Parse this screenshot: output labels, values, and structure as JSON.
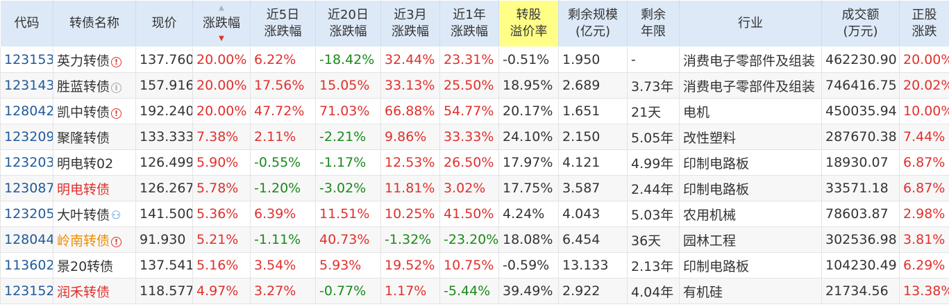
{
  "headers": [
    [
      "代码"
    ],
    [
      "转债名称"
    ],
    [
      "现价"
    ],
    [
      "涨跌幅"
    ],
    [
      "近5日",
      "涨跌幅"
    ],
    [
      "近20日",
      "涨跌幅"
    ],
    [
      "近3月",
      "涨跌幅"
    ],
    [
      "近1年",
      "涨跌幅"
    ],
    [
      "转股",
      "溢价率"
    ],
    [
      "剩余规模",
      "(亿元)"
    ],
    [
      "剩余",
      "年限"
    ],
    [
      "行业"
    ],
    [
      "成交额",
      "(万元)"
    ],
    [
      "正股",
      "涨跌"
    ]
  ],
  "sort_icons": {
    "up": "▲",
    "down": "▼"
  },
  "rows": [
    {
      "code": "123153",
      "name": "英力转债",
      "name_color": "default",
      "icon": "warning-icon",
      "icon_glyph": "!",
      "price": "137.760",
      "chg": "20.00%",
      "chg5": "6.22%",
      "chg20": "-18.42%",
      "chg3m": "32.44%",
      "chg1y": "23.31%",
      "premium": "-0.51%",
      "scale": "1.950",
      "remain": "-",
      "industry": "消费电子零部件及组装",
      "turnover": "462230.90",
      "stock_chg": "20.00%"
    },
    {
      "code": "123143",
      "name": "胜蓝转债",
      "name_color": "default",
      "icon": "info-icon",
      "icon_glyph": "i",
      "price": "157.916",
      "chg": "20.00%",
      "chg5": "17.56%",
      "chg20": "15.05%",
      "chg3m": "33.13%",
      "chg1y": "25.50%",
      "premium": "18.95%",
      "scale": "2.689",
      "remain": "3.73年",
      "industry": "消费电子零部件及组装",
      "turnover": "746416.75",
      "stock_chg": "20.02%"
    },
    {
      "code": "128042",
      "name": "凯中转债",
      "name_color": "default",
      "icon": "warning-icon",
      "icon_glyph": "!",
      "price": "192.240",
      "chg": "20.00%",
      "chg5": "47.72%",
      "chg20": "71.03%",
      "chg3m": "66.88%",
      "chg1y": "54.77%",
      "premium": "20.17%",
      "scale": "1.651",
      "remain": "21天",
      "industry": "电机",
      "turnover": "450035.94",
      "stock_chg": "10.00%"
    },
    {
      "code": "123209",
      "name": "聚隆转债",
      "name_color": "default",
      "icon": "",
      "icon_glyph": "",
      "price": "133.333",
      "chg": "7.38%",
      "chg5": "2.11%",
      "chg20": "-2.21%",
      "chg3m": "9.86%",
      "chg1y": "33.33%",
      "premium": "24.10%",
      "scale": "2.150",
      "remain": "5.05年",
      "industry": "改性塑料",
      "turnover": "287670.38",
      "stock_chg": "7.44%"
    },
    {
      "code": "123203",
      "name": "明电转02",
      "name_color": "default",
      "icon": "",
      "icon_glyph": "",
      "price": "126.499",
      "chg": "5.90%",
      "chg5": "-0.55%",
      "chg20": "-1.17%",
      "chg3m": "12.53%",
      "chg1y": "26.50%",
      "premium": "17.97%",
      "scale": "4.121",
      "remain": "4.99年",
      "industry": "印制电路板",
      "turnover": "18930.07",
      "stock_chg": "6.87%"
    },
    {
      "code": "123087",
      "name": "明电转债",
      "name_color": "red",
      "icon": "",
      "icon_glyph": "",
      "price": "126.267",
      "chg": "5.78%",
      "chg5": "-1.20%",
      "chg20": "-3.02%",
      "chg3m": "11.81%",
      "chg1y": "3.02%",
      "premium": "17.75%",
      "scale": "3.587",
      "remain": "2.44年",
      "industry": "印制电路板",
      "turnover": "33571.18",
      "stock_chg": "6.87%"
    },
    {
      "code": "123205",
      "name": "大叶转债",
      "name_color": "default",
      "icon": "person-icon",
      "icon_glyph": "⚇",
      "price": "141.500",
      "chg": "5.36%",
      "chg5": "6.39%",
      "chg20": "11.51%",
      "chg3m": "10.25%",
      "chg1y": "41.50%",
      "premium": "4.24%",
      "scale": "4.043",
      "remain": "5.03年",
      "industry": "农用机械",
      "turnover": "78603.87",
      "stock_chg": "2.98%"
    },
    {
      "code": "128044",
      "name": "岭南转债",
      "name_color": "orange",
      "icon": "warning-icon",
      "icon_glyph": "!",
      "price": "91.930",
      "chg": "5.21%",
      "chg5": "-1.11%",
      "chg20": "40.73%",
      "chg3m": "-1.32%",
      "chg1y": "-23.20%",
      "premium": "18.08%",
      "scale": "6.454",
      "remain": "36天",
      "industry": "园林工程",
      "turnover": "302536.98",
      "stock_chg": "3.81%"
    },
    {
      "code": "113602",
      "name": "景20转债",
      "name_color": "default",
      "icon": "",
      "icon_glyph": "",
      "price": "137.541",
      "chg": "5.16%",
      "chg5": "3.54%",
      "chg20": "5.93%",
      "chg3m": "19.52%",
      "chg1y": "10.75%",
      "premium": "-0.59%",
      "scale": "13.133",
      "remain": "2.13年",
      "industry": "印制电路板",
      "turnover": "104230.49",
      "stock_chg": "6.29%"
    },
    {
      "code": "123152",
      "name": "润禾转债",
      "name_color": "red",
      "icon": "",
      "icon_glyph": "",
      "price": "118.577",
      "chg": "4.97%",
      "chg5": "3.27%",
      "chg20": "-0.77%",
      "chg3m": "1.17%",
      "chg1y": "-5.44%",
      "premium": "39.49%",
      "scale": "2.922",
      "remain": "4.04年",
      "industry": "有机硅",
      "turnover": "21734.56",
      "stock_chg": "13.38%"
    }
  ]
}
